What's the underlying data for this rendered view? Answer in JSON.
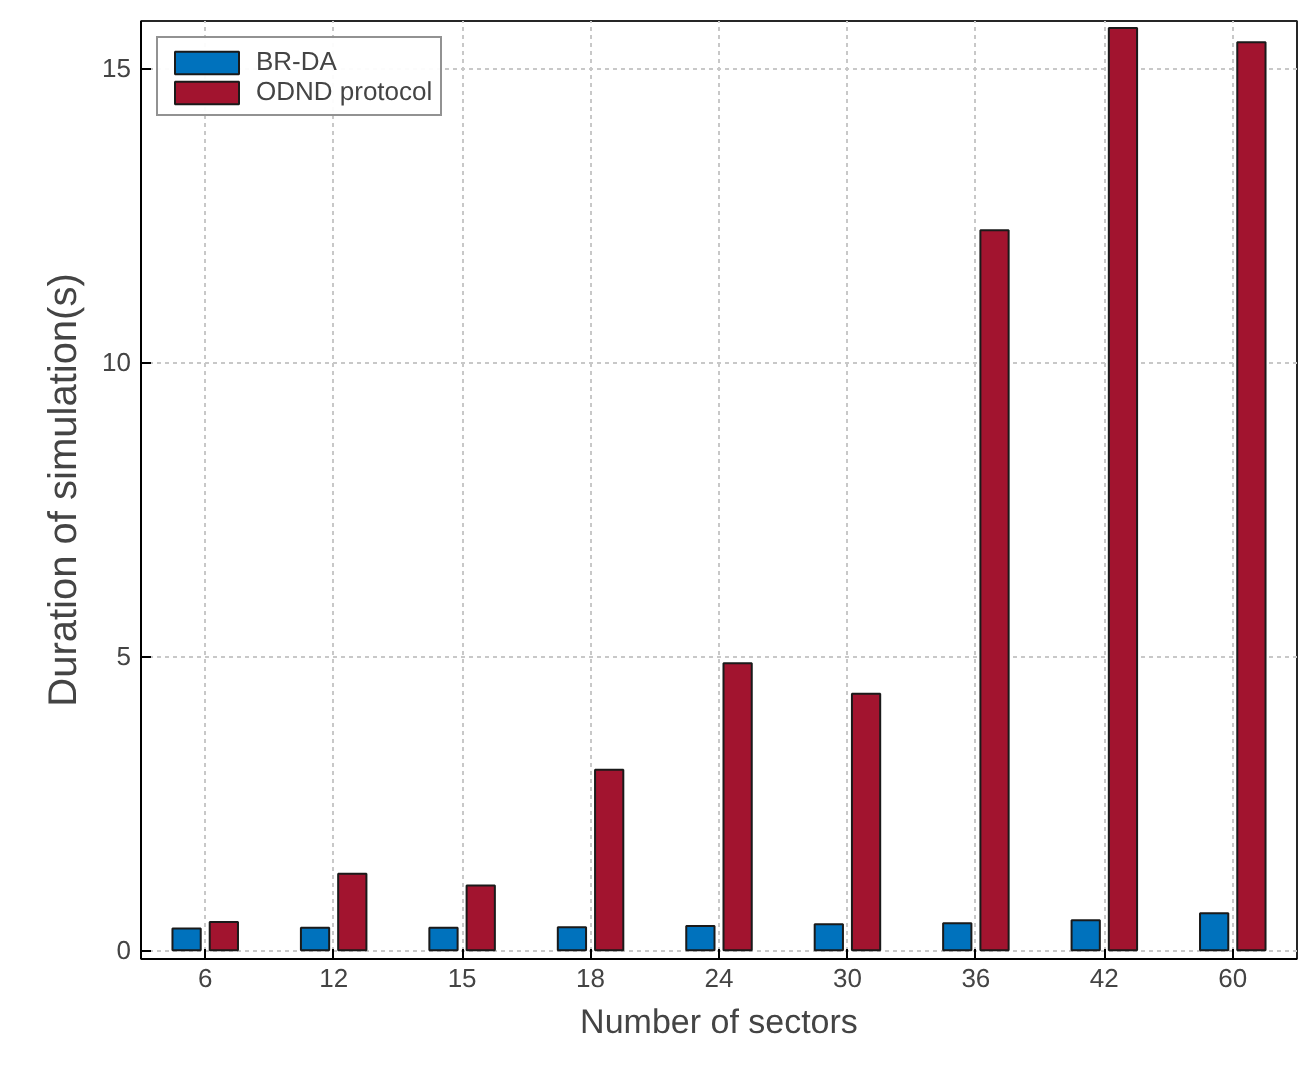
{
  "chart_data": {
    "type": "bar",
    "xlabel": "Number of sectors",
    "ylabel": "Duration of simulation(s)",
    "categories": [
      "6",
      "12",
      "15",
      "18",
      "24",
      "30",
      "36",
      "42",
      "60"
    ],
    "series": [
      {
        "name": "BR-DA",
        "color": "#0072bd",
        "values": [
          0.37,
          0.38,
          0.38,
          0.39,
          0.41,
          0.44,
          0.46,
          0.51,
          0.63
        ]
      },
      {
        "name": "ODND protocol",
        "color": "#a2142f",
        "values": [
          0.48,
          1.3,
          1.1,
          3.07,
          4.88,
          4.36,
          12.24,
          15.68,
          15.44
        ]
      }
    ],
    "ylim": [
      -0.15,
      15.8
    ],
    "yticks": [
      0,
      5,
      10,
      15
    ],
    "grid": true,
    "legend": "top left"
  }
}
